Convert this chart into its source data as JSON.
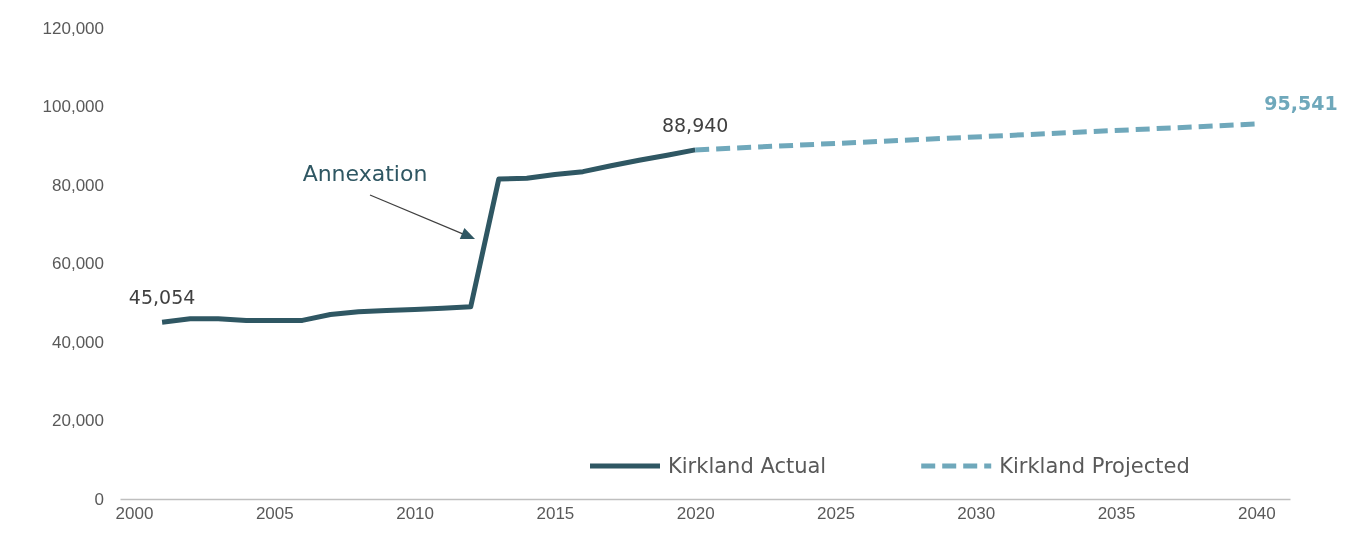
{
  "chart_data": {
    "type": "line",
    "xlim": [
      1999.5,
      2041.2
    ],
    "xticks": [
      2000,
      2005,
      2010,
      2015,
      2020,
      2025,
      2030,
      2035,
      2040
    ],
    "ylim": [
      0,
      120000
    ],
    "yticks": [
      {
        "value": 0,
        "label": "0"
      },
      {
        "value": 20000,
        "label": "20,000"
      },
      {
        "value": 40000,
        "label": "40,000"
      },
      {
        "value": 60000,
        "label": "60,000"
      },
      {
        "value": 80000,
        "label": "80,000"
      },
      {
        "value": 100000,
        "label": "100,000"
      },
      {
        "value": 120000,
        "label": "120,000"
      }
    ],
    "grid": false,
    "legend": "bottom right",
    "annotations": [
      "Annexation"
    ],
    "series": [
      {
        "name": "Kirkland Actual",
        "color": "#2f5763",
        "line_style": "solid",
        "x": [
          2001,
          2002,
          2003,
          2004,
          2005,
          2006,
          2007,
          2008,
          2009,
          2010,
          2011,
          2012,
          2013,
          2014,
          2015,
          2016,
          2017,
          2018,
          2019,
          2020
        ],
        "values": [
          45054,
          45900,
          45900,
          45500,
          45500,
          45500,
          47000,
          47700,
          48000,
          48300,
          48600,
          49000,
          81500,
          81700,
          82700,
          83400,
          84900,
          86300,
          87600,
          88940
        ],
        "value_labels": [
          "45,054",
          null,
          null,
          null,
          null,
          null,
          null,
          null,
          null,
          null,
          null,
          null,
          null,
          null,
          null,
          null,
          null,
          null,
          null,
          "88,940"
        ]
      },
      {
        "name": "Kirkland Projected",
        "color": "#6fa8bb",
        "line_style": "dashed",
        "x": [
          2020,
          2040
        ],
        "values": [
          88940,
          95541
        ],
        "value_labels": [
          null,
          "95,541"
        ]
      }
    ]
  }
}
